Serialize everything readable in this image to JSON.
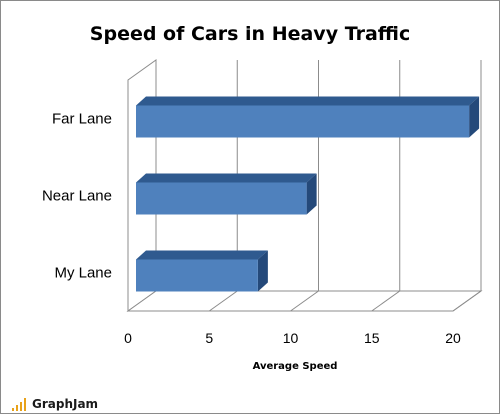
{
  "chart_data": {
    "type": "bar",
    "orientation": "horizontal",
    "title": "Speed of Cars in Heavy Traffic",
    "xlabel": "Average Speed",
    "ylabel": "",
    "categories": [
      "Far Lane",
      "Near Lane",
      "My Lane"
    ],
    "values": [
      20.5,
      10.5,
      7.5
    ],
    "xlim": [
      0,
      20
    ],
    "xticks": [
      0,
      5,
      10,
      15,
      20
    ],
    "grid": true,
    "legend": "none",
    "style": "3d",
    "bar_color": "#4f81bd"
  },
  "watermark": {
    "text": "GraphJam",
    "color": "#e8a21a"
  }
}
